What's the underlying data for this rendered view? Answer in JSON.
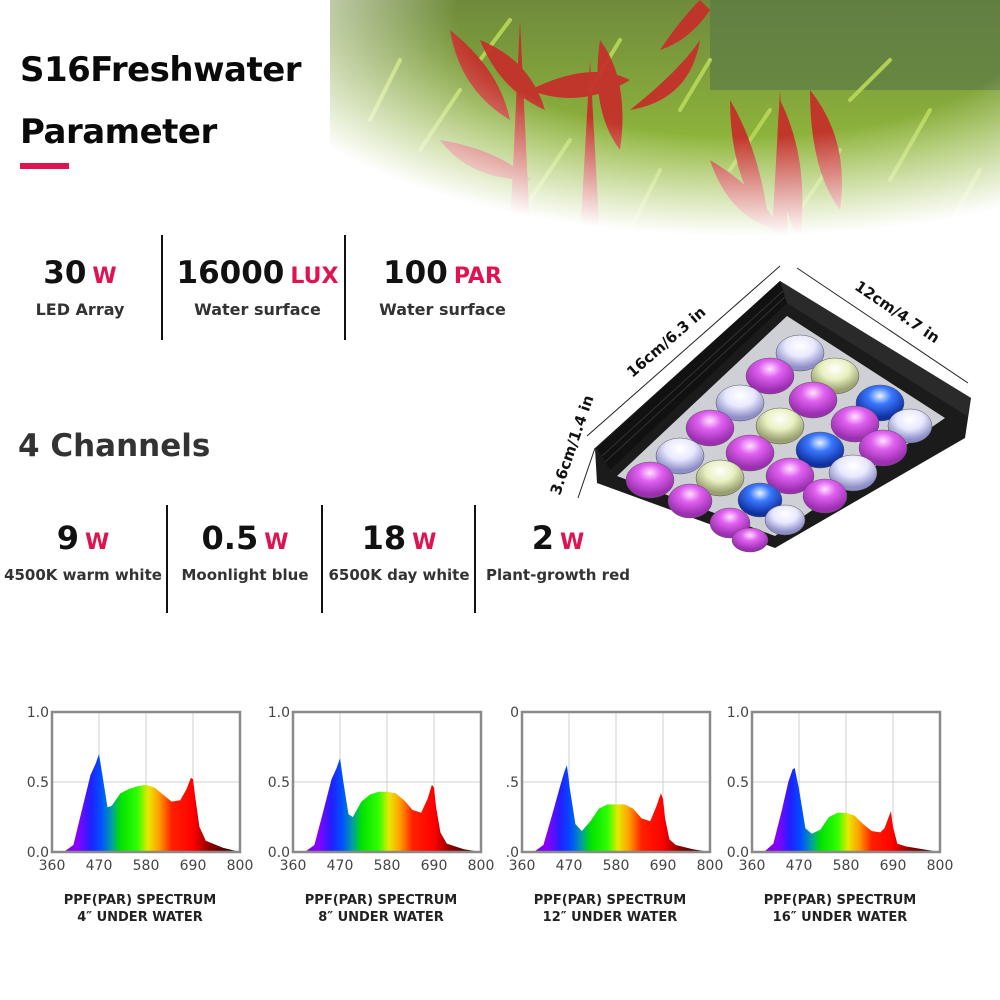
{
  "header": {
    "title_line1": "S16Freshwater",
    "title_line2": "Parameter",
    "accent_color": "#e0124f"
  },
  "specs": [
    {
      "value": "30",
      "unit": "W",
      "label": "LED Array"
    },
    {
      "value": "16000",
      "unit": "LUX",
      "label": "Water surface"
    },
    {
      "value": "100",
      "unit": "PAR",
      "label": "Water surface"
    }
  ],
  "channels": {
    "title": "4 Channels",
    "items": [
      {
        "value": "9",
        "unit": "W",
        "label": "4500K warm white"
      },
      {
        "value": "0.5",
        "unit": "W",
        "label": "Moonlight blue"
      },
      {
        "value": "18",
        "unit": "W",
        "label": "6500K day white"
      },
      {
        "value": "2",
        "unit": "W",
        "label": "Plant-growth red"
      }
    ]
  },
  "fixture": {
    "dim_length": "16cm/6.3 in",
    "dim_width": "12cm/4.7 in",
    "dim_height": "3.6cm/1.4 in",
    "led_colors": [
      "white",
      "magenta",
      "lime-white",
      "blue",
      "pink"
    ]
  },
  "chart_data": [
    {
      "type": "area",
      "title": "PPF(PAR) SPECTRUM",
      "subtitle": "4″  UNDER WATER",
      "xlabel": "",
      "ylabel": "",
      "x_ticks": [
        360,
        470,
        580,
        690,
        800
      ],
      "y_ticks": [
        "0.0",
        "0.5",
        "1.0"
      ],
      "xlim": [
        360,
        800
      ],
      "ylim": [
        0,
        1.0
      ],
      "grid": true,
      "x": [
        360,
        390,
        410,
        430,
        450,
        462,
        470,
        478,
        490,
        500,
        520,
        540,
        560,
        580,
        600,
        620,
        640,
        660,
        675,
        685,
        690,
        695,
        705,
        720,
        760,
        800
      ],
      "values": [
        0.0,
        0.005,
        0.05,
        0.3,
        0.55,
        0.63,
        0.7,
        0.55,
        0.32,
        0.33,
        0.42,
        0.45,
        0.47,
        0.48,
        0.46,
        0.41,
        0.36,
        0.37,
        0.45,
        0.53,
        0.52,
        0.4,
        0.18,
        0.08,
        0.03,
        0.0
      ]
    },
    {
      "type": "area",
      "title": "PPF(PAR) SPECTRUM",
      "subtitle": "8″  UNDER WATER",
      "xlabel": "",
      "ylabel": "",
      "x_ticks": [
        360,
        470,
        580,
        690,
        800
      ],
      "y_ticks": [
        "0.0",
        "0.5",
        "1.0"
      ],
      "xlim": [
        360,
        800
      ],
      "ylim": [
        0,
        1.0
      ],
      "grid": true,
      "x": [
        360,
        390,
        410,
        430,
        450,
        462,
        470,
        478,
        490,
        500,
        520,
        540,
        560,
        580,
        600,
        620,
        640,
        660,
        675,
        685,
        690,
        695,
        705,
        720,
        760,
        800
      ],
      "values": [
        0.0,
        0.005,
        0.05,
        0.28,
        0.52,
        0.6,
        0.67,
        0.5,
        0.27,
        0.25,
        0.36,
        0.41,
        0.43,
        0.43,
        0.42,
        0.37,
        0.3,
        0.28,
        0.38,
        0.48,
        0.46,
        0.32,
        0.14,
        0.06,
        0.02,
        0.0
      ]
    },
    {
      "type": "area",
      "title": "PPF(PAR) SPECTRUM",
      "subtitle": "12″  UNDER WATER",
      "xlabel": "",
      "ylabel": "",
      "x_ticks": [
        360,
        470,
        580,
        690,
        800
      ],
      "y_ticks": [
        ".0",
        ".5",
        "0"
      ],
      "xlim": [
        360,
        800
      ],
      "ylim": [
        0,
        1.0
      ],
      "grid": true,
      "x": [
        360,
        390,
        410,
        430,
        450,
        460,
        465,
        472,
        485,
        500,
        520,
        540,
        560,
        580,
        600,
        620,
        640,
        660,
        675,
        685,
        690,
        695,
        705,
        720,
        760,
        800
      ],
      "values": [
        0.0,
        0.005,
        0.05,
        0.26,
        0.48,
        0.58,
        0.62,
        0.45,
        0.2,
        0.15,
        0.22,
        0.31,
        0.34,
        0.34,
        0.34,
        0.31,
        0.24,
        0.22,
        0.33,
        0.42,
        0.38,
        0.24,
        0.09,
        0.05,
        0.02,
        0.0
      ]
    },
    {
      "type": "area",
      "title": "PPF(PAR) SPECTRUM",
      "subtitle": "16″  UNDER WATER",
      "xlabel": "",
      "ylabel": "",
      "x_ticks": [
        360,
        470,
        580,
        690,
        800
      ],
      "y_ticks": [
        "0.0",
        "0.5",
        "1.0"
      ],
      "xlim": [
        360,
        800
      ],
      "ylim": [
        0,
        1.0
      ],
      "grid": true,
      "x": [
        360,
        390,
        410,
        430,
        445,
        455,
        460,
        470,
        485,
        500,
        520,
        540,
        560,
        580,
        600,
        620,
        640,
        660,
        670,
        680,
        685,
        690,
        700,
        720,
        760,
        800
      ],
      "values": [
        0.0,
        0.005,
        0.06,
        0.3,
        0.5,
        0.59,
        0.6,
        0.45,
        0.17,
        0.13,
        0.16,
        0.25,
        0.28,
        0.28,
        0.26,
        0.2,
        0.15,
        0.14,
        0.17,
        0.25,
        0.29,
        0.18,
        0.06,
        0.04,
        0.02,
        0.0
      ]
    }
  ]
}
